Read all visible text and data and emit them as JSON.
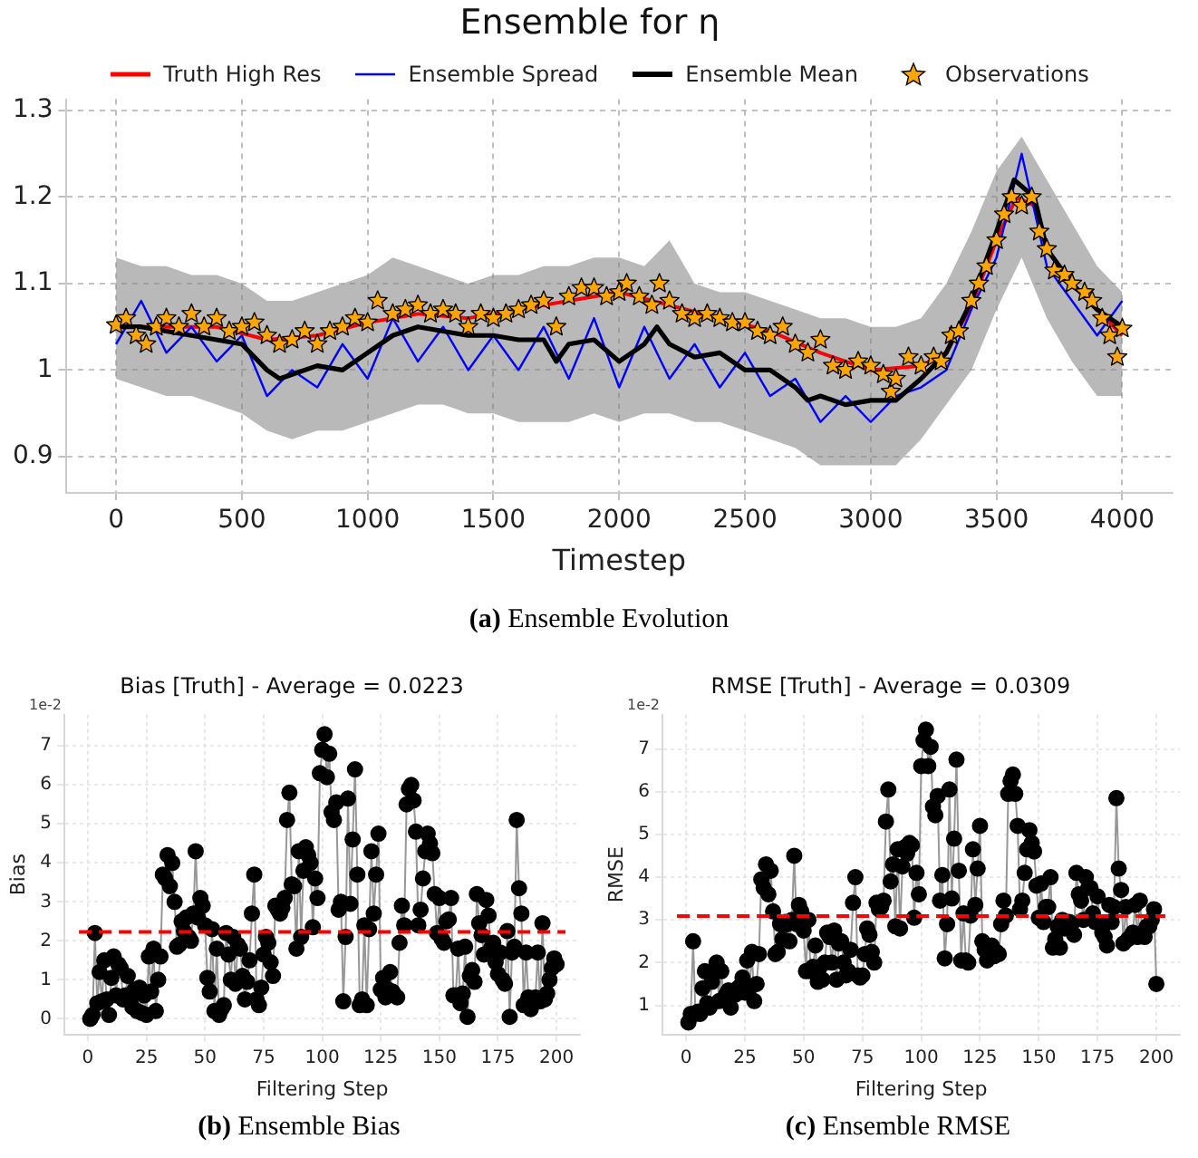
{
  "chart_data": [
    {
      "type": "line",
      "title": "Ensemble for η",
      "xlabel": "Timestep",
      "annotations": [
        "(a) Ensemble Evolution"
      ],
      "xlim": [
        -200,
        4200
      ],
      "xticks": [
        0,
        500,
        1000,
        1500,
        2000,
        2500,
        3000,
        3500,
        4000
      ],
      "ylim": [
        0.858,
        1.313
      ],
      "yticks": [
        0.9,
        1.0,
        1.1,
        1.2,
        1.3
      ],
      "grid": true,
      "legend": "top",
      "series": [
        {
          "name": "Truth High Res",
          "type": "line",
          "color": "#ff0000",
          "marker": "none",
          "x": [
            0,
            200,
            400,
            600,
            800,
            1000,
            1200,
            1400,
            1600,
            1800,
            2000,
            2200,
            2400,
            2600,
            2800,
            3000,
            3200,
            3300,
            3400,
            3500,
            3580,
            3650,
            3700,
            3800,
            3900,
            4000
          ],
          "values": [
            1.05,
            1.05,
            1.05,
            1.035,
            1.04,
            1.055,
            1.065,
            1.06,
            1.07,
            1.08,
            1.09,
            1.075,
            1.06,
            1.045,
            1.02,
            1.0,
            1.005,
            1.02,
            1.075,
            1.15,
            1.2,
            1.19,
            1.14,
            1.1,
            1.07,
            1.04
          ]
        },
        {
          "name": "Ensemble Spread",
          "type": "line",
          "color": "#0000ff",
          "marker": "none",
          "x": [
            0,
            100,
            200,
            300,
            400,
            500,
            600,
            700,
            800,
            900,
            1000,
            1100,
            1200,
            1300,
            1400,
            1500,
            1600,
            1700,
            1800,
            1900,
            2000,
            2100,
            2200,
            2300,
            2400,
            2500,
            2600,
            2700,
            2800,
            2900,
            3000,
            3100,
            3200,
            3300,
            3400,
            3500,
            3600,
            3700,
            3800,
            3900,
            4000
          ],
          "values": [
            1.03,
            1.08,
            1.02,
            1.05,
            1.01,
            1.04,
            0.97,
            1.0,
            0.98,
            1.03,
            0.99,
            1.06,
            1.01,
            1.05,
            1.0,
            1.04,
            1.0,
            1.05,
            0.99,
            1.06,
            0.98,
            1.05,
            0.99,
            1.03,
            0.98,
            1.02,
            0.97,
            0.99,
            0.94,
            0.97,
            0.94,
            0.97,
            0.98,
            1.0,
            1.07,
            1.13,
            1.25,
            1.12,
            1.08,
            1.04,
            1.08
          ],
          "lower": [
            0.99,
            0.98,
            0.97,
            0.97,
            0.96,
            0.95,
            0.93,
            0.92,
            0.93,
            0.93,
            0.94,
            0.95,
            0.96,
            0.96,
            0.95,
            0.95,
            0.94,
            0.94,
            0.94,
            0.95,
            0.94,
            0.95,
            0.95,
            0.94,
            0.94,
            0.93,
            0.92,
            0.91,
            0.89,
            0.89,
            0.89,
            0.89,
            0.92,
            0.96,
            1.0,
            1.07,
            1.13,
            1.06,
            1.01,
            0.97,
            0.97
          ],
          "upper": [
            1.13,
            1.12,
            1.12,
            1.11,
            1.11,
            1.1,
            1.08,
            1.08,
            1.09,
            1.1,
            1.11,
            1.13,
            1.12,
            1.11,
            1.1,
            1.11,
            1.11,
            1.12,
            1.12,
            1.13,
            1.13,
            1.12,
            1.15,
            1.1,
            1.09,
            1.09,
            1.08,
            1.07,
            1.06,
            1.06,
            1.05,
            1.05,
            1.06,
            1.1,
            1.16,
            1.23,
            1.27,
            1.22,
            1.17,
            1.12,
            1.09
          ]
        },
        {
          "name": "Ensemble Mean",
          "type": "line",
          "color": "#000000",
          "marker": "none",
          "x": [
            0,
            100,
            200,
            300,
            400,
            500,
            600,
            650,
            700,
            800,
            900,
            1000,
            1100,
            1200,
            1300,
            1400,
            1500,
            1600,
            1700,
            1750,
            1800,
            1900,
            2000,
            2100,
            2150,
            2200,
            2300,
            2400,
            2500,
            2600,
            2700,
            2750,
            2800,
            2900,
            3000,
            3100,
            3200,
            3300,
            3400,
            3500,
            3570,
            3650,
            3700,
            3800,
            3900,
            4000
          ],
          "values": [
            1.05,
            1.05,
            1.045,
            1.04,
            1.035,
            1.03,
            1.0,
            0.99,
            0.995,
            1.005,
            1.0,
            1.02,
            1.04,
            1.05,
            1.045,
            1.04,
            1.04,
            1.035,
            1.035,
            1.01,
            1.03,
            1.035,
            1.01,
            1.03,
            1.05,
            1.03,
            1.015,
            1.02,
            1.0,
            1.0,
            0.98,
            0.965,
            0.97,
            0.96,
            0.965,
            0.965,
            0.99,
            1.02,
            1.08,
            1.16,
            1.22,
            1.2,
            1.14,
            1.1,
            1.07,
            1.05
          ]
        },
        {
          "name": "Observations",
          "type": "scatter",
          "color": "#ffa500",
          "marker": "star",
          "x": [
            0,
            40,
            80,
            120,
            160,
            200,
            250,
            300,
            350,
            400,
            450,
            500,
            550,
            600,
            650,
            700,
            750,
            800,
            850,
            900,
            950,
            1000,
            1040,
            1100,
            1150,
            1200,
            1250,
            1300,
            1350,
            1400,
            1450,
            1500,
            1550,
            1600,
            1650,
            1700,
            1750,
            1800,
            1850,
            1900,
            1950,
            2000,
            2030,
            2080,
            2130,
            2160,
            2200,
            2250,
            2300,
            2350,
            2400,
            2450,
            2500,
            2550,
            2600,
            2650,
            2700,
            2750,
            2800,
            2850,
            2900,
            2950,
            3000,
            3050,
            3080,
            3100,
            3150,
            3200,
            3250,
            3280,
            3320,
            3350,
            3400,
            3430,
            3460,
            3500,
            3530,
            3560,
            3600,
            3640,
            3670,
            3700,
            3730,
            3770,
            3800,
            3850,
            3880,
            3920,
            3950,
            3980,
            4000
          ],
          "values": [
            1.052,
            1.06,
            1.04,
            1.03,
            1.05,
            1.06,
            1.05,
            1.065,
            1.05,
            1.06,
            1.045,
            1.05,
            1.055,
            1.04,
            1.03,
            1.035,
            1.045,
            1.03,
            1.045,
            1.05,
            1.06,
            1.055,
            1.08,
            1.065,
            1.07,
            1.075,
            1.065,
            1.07,
            1.065,
            1.05,
            1.065,
            1.06,
            1.065,
            1.07,
            1.075,
            1.08,
            1.05,
            1.085,
            1.095,
            1.095,
            1.085,
            1.09,
            1.1,
            1.085,
            1.075,
            1.1,
            1.08,
            1.065,
            1.06,
            1.065,
            1.06,
            1.055,
            1.055,
            1.045,
            1.04,
            1.05,
            1.03,
            1.02,
            1.035,
            1.005,
            1.0,
            1.01,
            1.005,
            0.995,
            0.975,
            0.99,
            1.015,
            1.005,
            1.015,
            1.01,
            1.04,
            1.045,
            1.08,
            1.1,
            1.12,
            1.15,
            1.18,
            1.2,
            1.19,
            1.2,
            1.16,
            1.14,
            1.115,
            1.11,
            1.1,
            1.09,
            1.08,
            1.06,
            1.04,
            1.015,
            1.048
          ]
        }
      ]
    },
    {
      "type": "line",
      "title": "Bias [Truth] - Average = 0.0223",
      "xlabel": "Filtering Step",
      "ylabel": "Bias",
      "annotations": [
        "1e-2",
        "(b) Ensemble Bias"
      ],
      "xlim": [
        -10,
        210
      ],
      "xticks": [
        0,
        25,
        50,
        75,
        100,
        125,
        150,
        175,
        200
      ],
      "ylim": [
        -0.4,
        7.8
      ],
      "yticks": [
        0,
        1,
        2,
        3,
        4,
        5,
        6,
        7
      ],
      "grid": true,
      "ref_lines": [
        {
          "axis": "y",
          "value": 2.23,
          "color": "#ff0000",
          "line_style": "dashed"
        }
      ],
      "series": [
        {
          "type": "line",
          "color": "#000000",
          "marker": "circle",
          "x": [
            1,
            2,
            3,
            4,
            5,
            6,
            7,
            8,
            9,
            10,
            11,
            12,
            13,
            14,
            15,
            16,
            17,
            18,
            19,
            20,
            21,
            22,
            23,
            24,
            25,
            26,
            27,
            28,
            29,
            30,
            31,
            32,
            33,
            34,
            35,
            36,
            37,
            38,
            39,
            40,
            41,
            42,
            43,
            44,
            45,
            46,
            47,
            48,
            49,
            50,
            51,
            52,
            53,
            54,
            55,
            56,
            57,
            58,
            59,
            60,
            61,
            62,
            63,
            64,
            65,
            66,
            67,
            68,
            69,
            70,
            71,
            72,
            73,
            74,
            75,
            76,
            77,
            78,
            79,
            80,
            81,
            82,
            83,
            84,
            85,
            86,
            87,
            88,
            89,
            90,
            91,
            92,
            93,
            94,
            95,
            96,
            97,
            98,
            99,
            100,
            101,
            102,
            103,
            104,
            105,
            106,
            107,
            108,
            109,
            110,
            111,
            112,
            113,
            114,
            115,
            116,
            117,
            118,
            119,
            120,
            121,
            122,
            123,
            124,
            125,
            126,
            127,
            128,
            129,
            130,
            131,
            132,
            133,
            134,
            135,
            136,
            137,
            138,
            139,
            140,
            141,
            142,
            143,
            144,
            145,
            146,
            147,
            148,
            149,
            150,
            151,
            152,
            153,
            154,
            155,
            156,
            157,
            158,
            159,
            160,
            161,
            162,
            163,
            164,
            165,
            166,
            167,
            168,
            169,
            170,
            171,
            172,
            173,
            174,
            175,
            176,
            177,
            178,
            179,
            180,
            181,
            182,
            183,
            184,
            185,
            186,
            187,
            188,
            189,
            190,
            191,
            192,
            193,
            194,
            195,
            196,
            197,
            198,
            199,
            200
          ],
          "values": [
            0,
            0.1,
            2.2,
            0.4,
            1.2,
            0.45,
            1.5,
            0.5,
            0.1,
            1.05,
            1.6,
            0.6,
            1.4,
            1.3,
            0.5,
            0.6,
            1.1,
            0.5,
            0.3,
            0.75,
            0.2,
            0.8,
            0.15,
            0.6,
            0.1,
            1.6,
            0.7,
            1.8,
            0.2,
            1.0,
            1.6,
            3.7,
            3.6,
            4.2,
            3.4,
            4.0,
            3.0,
            1.85,
            1.9,
            2.5,
            2.25,
            2.6,
            2.1,
            2.0,
            2.7,
            4.3,
            2.6,
            3.1,
            2.9,
            2.4,
            1.05,
            0.7,
            2.3,
            0.2,
            1.8,
            0.1,
            0.25,
            0.35,
            2.2,
            1.65,
            1.0,
            2.1,
            0.9,
            1.9,
            1.8,
            1.1,
            0.5,
            0.95,
            1.5,
            2.7,
            3.7,
            0.5,
            0.35,
            0.8,
            1.65,
            2.1,
            1.95,
            1.45,
            1.1,
            2.9,
            2.8,
            2.7,
            2.85,
            3.1,
            5.1,
            5.8,
            3.45,
            3.4,
            1.8,
            4.3,
            2.1,
            3.8,
            4.4,
            4.2,
            4.0,
            2.35,
            3.6,
            3.1,
            6.3,
            6.9,
            7.3,
            6.2,
            6.8,
            5.3,
            5.1,
            5.55,
            2.8,
            3.0,
            0.45,
            2.1,
            5.65,
            2.95,
            4.6,
            6.4,
            3.7,
            0.35,
            0.5,
            2.4,
            0.35,
            2.3,
            4.3,
            2.7,
            3.7,
            4.75,
            0.75,
            1.05,
            0.55,
            0.75,
            1.2,
            0.7,
            0.6,
            0.55,
            1.95,
            2.9,
            2.4,
            5.5,
            5.9,
            6.0,
            5.6,
            4.8,
            2.4,
            2.8,
            3.6,
            4.3,
            4.75,
            4.5,
            4.25,
            3.2,
            2.2,
            3.1,
            2.05,
            1.95,
            2.5,
            2.55,
            3.1,
            0.6,
            0.6,
            1.8,
            0.4,
            0.65,
            1.85,
            0.05,
            1.1,
            1.25,
            0.95,
            3.2,
            2.45,
            2.15,
            1.65,
            3.05,
            2.65,
            1.8,
            1.95,
            1.45,
            1.15,
            1.7,
            1.0,
            0.9,
            2.25,
            0.05,
            1.7,
            1.85,
            5.1,
            3.35,
            2.7,
            0.35,
            1.7,
            0.55,
            0.25,
            0.4,
            0.55,
            1.7,
            0.45,
            2.45,
            0.5,
            0.65,
            1.0,
            1.3,
            1.55,
            1.4
          ]
        }
      ]
    },
    {
      "type": "line",
      "title": "RMSE [Truth] - Average = 0.0309",
      "xlabel": "Filtering Step",
      "ylabel": "RMSE",
      "annotations": [
        "1e-2",
        "(c) Ensemble RMSE"
      ],
      "xlim": [
        -10,
        210
      ],
      "xticks": [
        0,
        25,
        50,
        75,
        100,
        125,
        150,
        175,
        200
      ],
      "ylim": [
        0.32,
        7.8
      ],
      "yticks": [
        1,
        2,
        3,
        4,
        5,
        6,
        7
      ],
      "grid": true,
      "ref_lines": [
        {
          "axis": "y",
          "value": 3.09,
          "color": "#ff0000",
          "line_style": "dashed"
        }
      ],
      "series": [
        {
          "type": "line",
          "color": "#000000",
          "marker": "circle",
          "x": [
            1,
            2,
            3,
            4,
            5,
            6,
            7,
            8,
            9,
            10,
            11,
            12,
            13,
            14,
            15,
            16,
            17,
            18,
            19,
            20,
            21,
            22,
            23,
            24,
            25,
            26,
            27,
            28,
            29,
            30,
            31,
            32,
            33,
            34,
            35,
            36,
            37,
            38,
            39,
            40,
            41,
            42,
            43,
            44,
            45,
            46,
            47,
            48,
            49,
            50,
            51,
            52,
            53,
            54,
            55,
            56,
            57,
            58,
            59,
            60,
            61,
            62,
            63,
            64,
            65,
            66,
            67,
            68,
            69,
            70,
            71,
            72,
            73,
            74,
            75,
            76,
            77,
            78,
            79,
            80,
            81,
            82,
            83,
            84,
            85,
            86,
            87,
            88,
            89,
            90,
            91,
            92,
            93,
            94,
            95,
            96,
            97,
            98,
            99,
            100,
            101,
            102,
            103,
            104,
            105,
            106,
            107,
            108,
            109,
            110,
            111,
            112,
            113,
            114,
            115,
            116,
            117,
            118,
            119,
            120,
            121,
            122,
            123,
            124,
            125,
            126,
            127,
            128,
            129,
            130,
            131,
            132,
            133,
            134,
            135,
            136,
            137,
            138,
            139,
            140,
            141,
            142,
            143,
            144,
            145,
            146,
            147,
            148,
            149,
            150,
            151,
            152,
            153,
            154,
            155,
            156,
            157,
            158,
            159,
            160,
            161,
            162,
            163,
            164,
            165,
            166,
            167,
            168,
            169,
            170,
            171,
            172,
            173,
            174,
            175,
            176,
            177,
            178,
            179,
            180,
            181,
            182,
            183,
            184,
            185,
            186,
            187,
            188,
            189,
            190,
            191,
            192,
            193,
            194,
            195,
            196,
            197,
            198,
            199,
            200
          ],
          "values": [
            0.6,
            0.8,
            2.5,
            0.8,
            0.85,
            0.8,
            1.4,
            1.8,
            1.05,
            0.95,
            1.55,
            1.8,
            2.0,
            1.1,
            1.8,
            1.15,
            1.25,
            1.35,
            0.95,
            1.3,
            1.25,
            1.4,
            1.45,
            1.65,
            1.3,
            2.05,
            1.4,
            2.25,
            1.1,
            1.5,
            2.2,
            3.95,
            3.75,
            4.3,
            3.6,
            4.15,
            3.2,
            2.2,
            2.25,
            2.9,
            2.55,
            2.95,
            2.9,
            2.5,
            3.0,
            4.5,
            2.9,
            3.35,
            3.2,
            2.75,
            1.8,
            3.0,
            1.8,
            1.9,
            2.4,
            1.55,
            1.9,
            1.6,
            2.0,
            2.7,
            2.6,
            2.0,
            2.75,
            1.6,
            2.45,
            2.5,
            2.0,
            1.7,
            1.8,
            2.3,
            3.4,
            4.0,
            1.7,
            1.65,
            1.7,
            2.2,
            2.8,
            2.65,
            2.25,
            2.0,
            3.4,
            3.25,
            3.3,
            3.45,
            5.3,
            6.05,
            3.9,
            4.3,
            2.85,
            4.65,
            2.8,
            4.25,
            4.7,
            4.55,
            4.8,
            4.75,
            3.05,
            4.1,
            3.6,
            6.6,
            7.2,
            7.45,
            6.6,
            7.05,
            5.65,
            5.45,
            5.9,
            3.45,
            4.05,
            2.1,
            2.9,
            6.05,
            3.5,
            4.9,
            6.75,
            4.15,
            2.05,
            3.15,
            2.05,
            2.0,
            3.1,
            4.65,
            3.35,
            4.2,
            5.2,
            2.5,
            2.3,
            2.05,
            2.25,
            2.4,
            2.15,
            2.25,
            2.2,
            2.9,
            3.45,
            3.1,
            5.95,
            6.25,
            6.4,
            5.95,
            5.2,
            3.25,
            3.45,
            4.1,
            4.65,
            5.1,
            4.8,
            4.6,
            3.8,
            3.05,
            3.85,
            2.95,
            3.3,
            3.3,
            4.0,
            2.35,
            2.55,
            2.85,
            2.35,
            3.0,
            2.8,
            2.95,
            2.95,
            2.9,
            2.65,
            4.1,
            3.6,
            3.45,
            3.0,
            4.0,
            3.75,
            3.75,
            3.15,
            2.95,
            3.55,
            2.9,
            2.7,
            2.6,
            2.4,
            3.35,
            2.95,
            3.3,
            5.85,
            4.2,
            3.7,
            2.45,
            3.3,
            2.55,
            2.6,
            2.7,
            3.35,
            2.6,
            3.45,
            2.7,
            2.6,
            2.85,
            2.85,
            3.0,
            3.25,
            1.5
          ]
        }
      ]
    }
  ]
}
